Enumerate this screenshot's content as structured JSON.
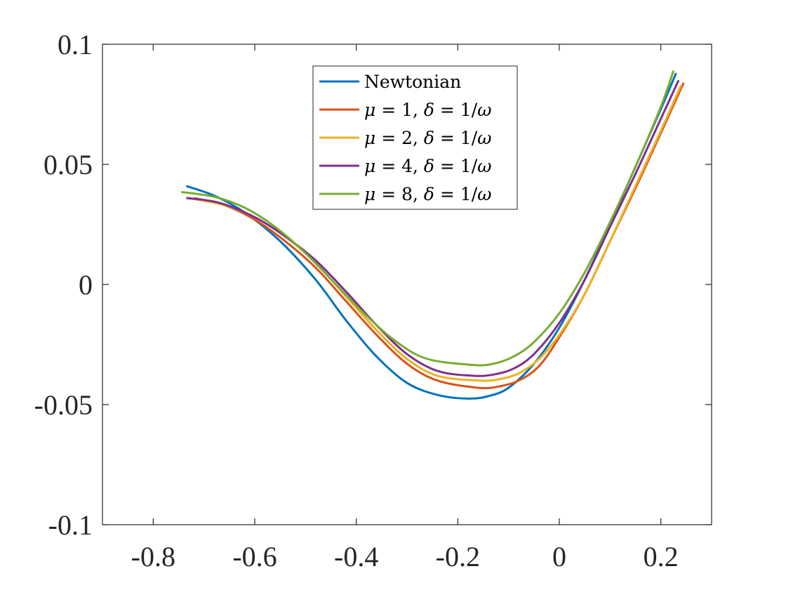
{
  "chart_data": {
    "type": "line",
    "title": "",
    "xlabel": "",
    "ylabel": "",
    "xlim": [
      -0.9,
      0.3
    ],
    "ylim": [
      -0.1,
      0.1
    ],
    "xticks": [
      -0.8,
      -0.6,
      -0.4,
      -0.2,
      0,
      0.2
    ],
    "xtick_labels": [
      "-0.8",
      "-0.6",
      "-0.4",
      "-0.2",
      "0",
      "0.2"
    ],
    "yticks": [
      -0.1,
      -0.05,
      0,
      0.05,
      0.1
    ],
    "ytick_labels": [
      "-0.1",
      "-0.05",
      "0",
      "0.05",
      "0.1"
    ],
    "grid": false,
    "box": true,
    "legend": {
      "placement": "top-center",
      "entries": [
        {
          "math": "",
          "text": "Newtonian"
        },
        {
          "math": "μ",
          "text": " = 1, ",
          "math2": "δ",
          "text2": " = 1/",
          "math3": "ω"
        },
        {
          "math": "μ",
          "text": " = 2, ",
          "math2": "δ",
          "text2": " = 1/",
          "math3": "ω"
        },
        {
          "math": "μ",
          "text": " = 4, ",
          "math2": "δ",
          "text2": " = 1/",
          "math3": "ω"
        },
        {
          "math": "μ",
          "text": " = 8, ",
          "math2": "δ",
          "text2": " = 1/",
          "math3": "ω"
        }
      ]
    },
    "series": [
      {
        "name": "Newtonian",
        "color": "#0072BD",
        "points": [
          [
            -0.735,
            0.041
          ],
          [
            -0.68,
            0.037
          ],
          [
            -0.62,
            0.03
          ],
          [
            -0.55,
            0.018
          ],
          [
            -0.48,
            0.002
          ],
          [
            -0.42,
            -0.015
          ],
          [
            -0.36,
            -0.03
          ],
          [
            -0.3,
            -0.041
          ],
          [
            -0.24,
            -0.046
          ],
          [
            -0.18,
            -0.0475
          ],
          [
            -0.14,
            -0.0465
          ],
          [
            -0.1,
            -0.043
          ],
          [
            -0.05,
            -0.033
          ],
          [
            0.0,
            -0.018
          ],
          [
            0.05,
            0.002
          ],
          [
            0.1,
            0.025
          ],
          [
            0.15,
            0.049
          ],
          [
            0.2,
            0.073
          ],
          [
            0.23,
            0.088
          ]
        ]
      },
      {
        "name": "μ = 1, δ = 1/ω",
        "color": "#D95319",
        "points": [
          [
            -0.72,
            0.036
          ],
          [
            -0.66,
            0.033
          ],
          [
            -0.6,
            0.027
          ],
          [
            -0.54,
            0.018
          ],
          [
            -0.48,
            0.007
          ],
          [
            -0.42,
            -0.007
          ],
          [
            -0.36,
            -0.021
          ],
          [
            -0.3,
            -0.033
          ],
          [
            -0.24,
            -0.04
          ],
          [
            -0.16,
            -0.043
          ],
          [
            -0.12,
            -0.0425
          ],
          [
            -0.08,
            -0.04
          ],
          [
            -0.04,
            -0.034
          ],
          [
            0.0,
            -0.022
          ],
          [
            0.05,
            -0.004
          ],
          [
            0.1,
            0.018
          ],
          [
            0.15,
            0.04
          ],
          [
            0.2,
            0.063
          ],
          [
            0.245,
            0.084
          ]
        ]
      },
      {
        "name": "μ = 2, δ = 1/ω",
        "color": "#EDB120",
        "points": [
          [
            -0.73,
            0.036
          ],
          [
            -0.66,
            0.033
          ],
          [
            -0.6,
            0.028
          ],
          [
            -0.54,
            0.02
          ],
          [
            -0.48,
            0.009
          ],
          [
            -0.42,
            -0.005
          ],
          [
            -0.36,
            -0.019
          ],
          [
            -0.3,
            -0.031
          ],
          [
            -0.24,
            -0.038
          ],
          [
            -0.16,
            -0.04
          ],
          [
            -0.12,
            -0.0395
          ],
          [
            -0.08,
            -0.037
          ],
          [
            -0.04,
            -0.031
          ],
          [
            0.0,
            -0.021
          ],
          [
            0.05,
            -0.004
          ],
          [
            0.1,
            0.018
          ],
          [
            0.15,
            0.041
          ],
          [
            0.2,
            0.064
          ],
          [
            0.24,
            0.083
          ]
        ]
      },
      {
        "name": "μ = 4, δ = 1/ω",
        "color": "#7E2F8E",
        "points": [
          [
            -0.735,
            0.036
          ],
          [
            -0.67,
            0.034
          ],
          [
            -0.6,
            0.028
          ],
          [
            -0.54,
            0.02
          ],
          [
            -0.48,
            0.01
          ],
          [
            -0.42,
            -0.003
          ],
          [
            -0.36,
            -0.017
          ],
          [
            -0.3,
            -0.029
          ],
          [
            -0.24,
            -0.036
          ],
          [
            -0.17,
            -0.038
          ],
          [
            -0.13,
            -0.0375
          ],
          [
            -0.09,
            -0.035
          ],
          [
            -0.05,
            -0.029
          ],
          [
            0.0,
            -0.016
          ],
          [
            0.05,
            0.002
          ],
          [
            0.1,
            0.024
          ],
          [
            0.15,
            0.046
          ],
          [
            0.2,
            0.069
          ],
          [
            0.235,
            0.085
          ]
        ]
      },
      {
        "name": "μ = 8, δ = 1/ω",
        "color": "#77AC30",
        "points": [
          [
            -0.745,
            0.0385
          ],
          [
            -0.68,
            0.0365
          ],
          [
            -0.62,
            0.032
          ],
          [
            -0.56,
            0.024
          ],
          [
            -0.5,
            0.013
          ],
          [
            -0.44,
            0.0
          ],
          [
            -0.38,
            -0.013
          ],
          [
            -0.32,
            -0.024
          ],
          [
            -0.26,
            -0.031
          ],
          [
            -0.17,
            -0.0335
          ],
          [
            -0.13,
            -0.033
          ],
          [
            -0.09,
            -0.03
          ],
          [
            -0.05,
            -0.024
          ],
          [
            0.0,
            -0.012
          ],
          [
            0.05,
            0.005
          ],
          [
            0.1,
            0.026
          ],
          [
            0.15,
            0.049
          ],
          [
            0.2,
            0.074
          ],
          [
            0.225,
            0.089
          ]
        ]
      }
    ]
  }
}
